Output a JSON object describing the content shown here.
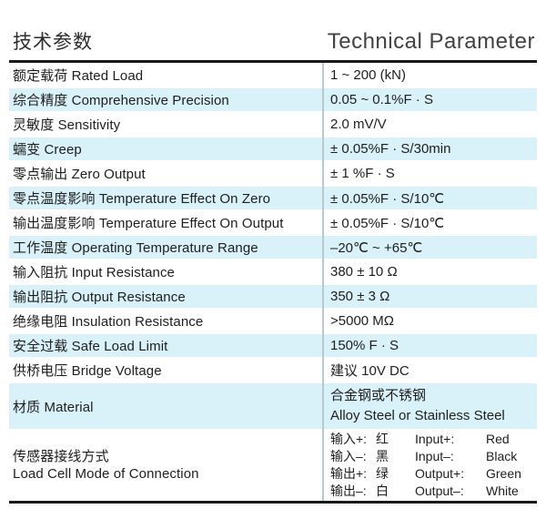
{
  "header": {
    "title_zh": "技术参数",
    "title_en": "Technical Parameter"
  },
  "table": {
    "rows": [
      {
        "label": "额定载荷 Rated Load",
        "value": "1 ~ 200 (kN)"
      },
      {
        "label": "综合精度 Comprehensive Precision",
        "value": "0.05 ~ 0.1%F · S"
      },
      {
        "label": "灵敏度 Sensitivity",
        "value": "2.0 mV/V"
      },
      {
        "label": "蠕变 Creep",
        "value": "± 0.05%F · S/30min"
      },
      {
        "label": "零点输出 Zero Output",
        "value": "± 1 %F · S"
      },
      {
        "label": "零点温度影响 Temperature Effect On Zero",
        "value": "± 0.05%F · S/10℃"
      },
      {
        "label": "输出温度影响 Temperature Effect On Output",
        "value": "± 0.05%F · S/10℃"
      },
      {
        "label": "工作温度 Operating Temperature Range",
        "value": "–20℃ ~ +65℃"
      },
      {
        "label": "输入阻抗 Input Resistance",
        "value": "380 ± 10 Ω"
      },
      {
        "label": "输出阻抗 Output Resistance",
        "value": "350 ± 3 Ω"
      },
      {
        "label": "绝缘电阻 Insulation Resistance",
        "value": ">5000 MΩ"
      },
      {
        "label": "安全过载 Safe Load Limit",
        "value": "150% F · S"
      },
      {
        "label": "供桥电压 Bridge Voltage",
        "value": "建议 10V DC"
      }
    ],
    "material_row": {
      "label": "材质 Material",
      "value_lines": [
        "合金钢或不锈钢",
        "Alloy Steel or Stainless Steel"
      ]
    },
    "connection_row": {
      "label_lines": [
        "传感器接线方式",
        "Load Cell Mode of Connection"
      ],
      "wiring": [
        {
          "zh": "输入+:",
          "zh_color": "红",
          "en": "Input+:",
          "en_color": "Red"
        },
        {
          "zh": "输入–:",
          "zh_color": "黑",
          "en": "Input–:",
          "en_color": "Black"
        },
        {
          "zh": "输出+:",
          "zh_color": "绿",
          "en": "Output+:",
          "en_color": "Green"
        },
        {
          "zh": "输出–:",
          "zh_color": "白",
          "en": "Output–:",
          "en_color": "White"
        }
      ]
    }
  },
  "colors": {
    "row_highlight": "#d9f1f8",
    "column_divider": "#b7c9cf",
    "rule": "#191919",
    "text": "#1e1e1e"
  }
}
